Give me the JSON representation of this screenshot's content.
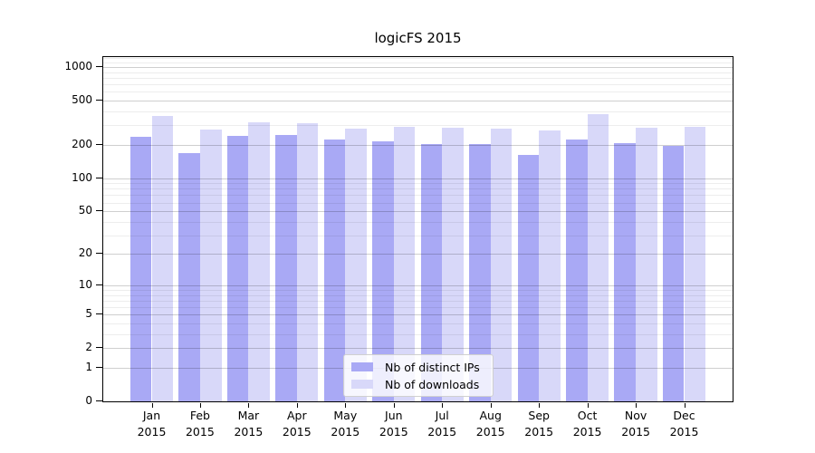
{
  "chart_data": {
    "type": "bar",
    "title": "logicFS 2015",
    "categories": [
      "Jan 2015",
      "Feb 2015",
      "Mar 2015",
      "Apr 2015",
      "May 2015",
      "Jun 2015",
      "Jul 2015",
      "Aug 2015",
      "Sep 2015",
      "Oct 2015",
      "Nov 2015",
      "Dec 2015"
    ],
    "series": [
      {
        "name": "Nb of distinct IPs",
        "color": "#a9a9f5",
        "values": [
          235,
          167,
          239,
          245,
          222,
          215,
          202,
          203,
          161,
          222,
          207,
          195
        ]
      },
      {
        "name": "Nb of downloads",
        "color": "#d8d8f9",
        "values": [
          367,
          276,
          317,
          313,
          281,
          290,
          285,
          281,
          267,
          377,
          285,
          292
        ]
      }
    ],
    "yscale": "log1p",
    "ylim": [
      0,
      1230
    ],
    "yticks": [
      0,
      1,
      2,
      5,
      10,
      20,
      50,
      100,
      200,
      500,
      1000
    ],
    "xlabel": "",
    "ylabel": "",
    "grid": true,
    "legend_position": "lower center"
  },
  "colors": {
    "grid_major": "rgba(0,0,0,0.19)",
    "grid_minor": "rgba(0,0,0,0.07)",
    "spine": "#000000"
  }
}
